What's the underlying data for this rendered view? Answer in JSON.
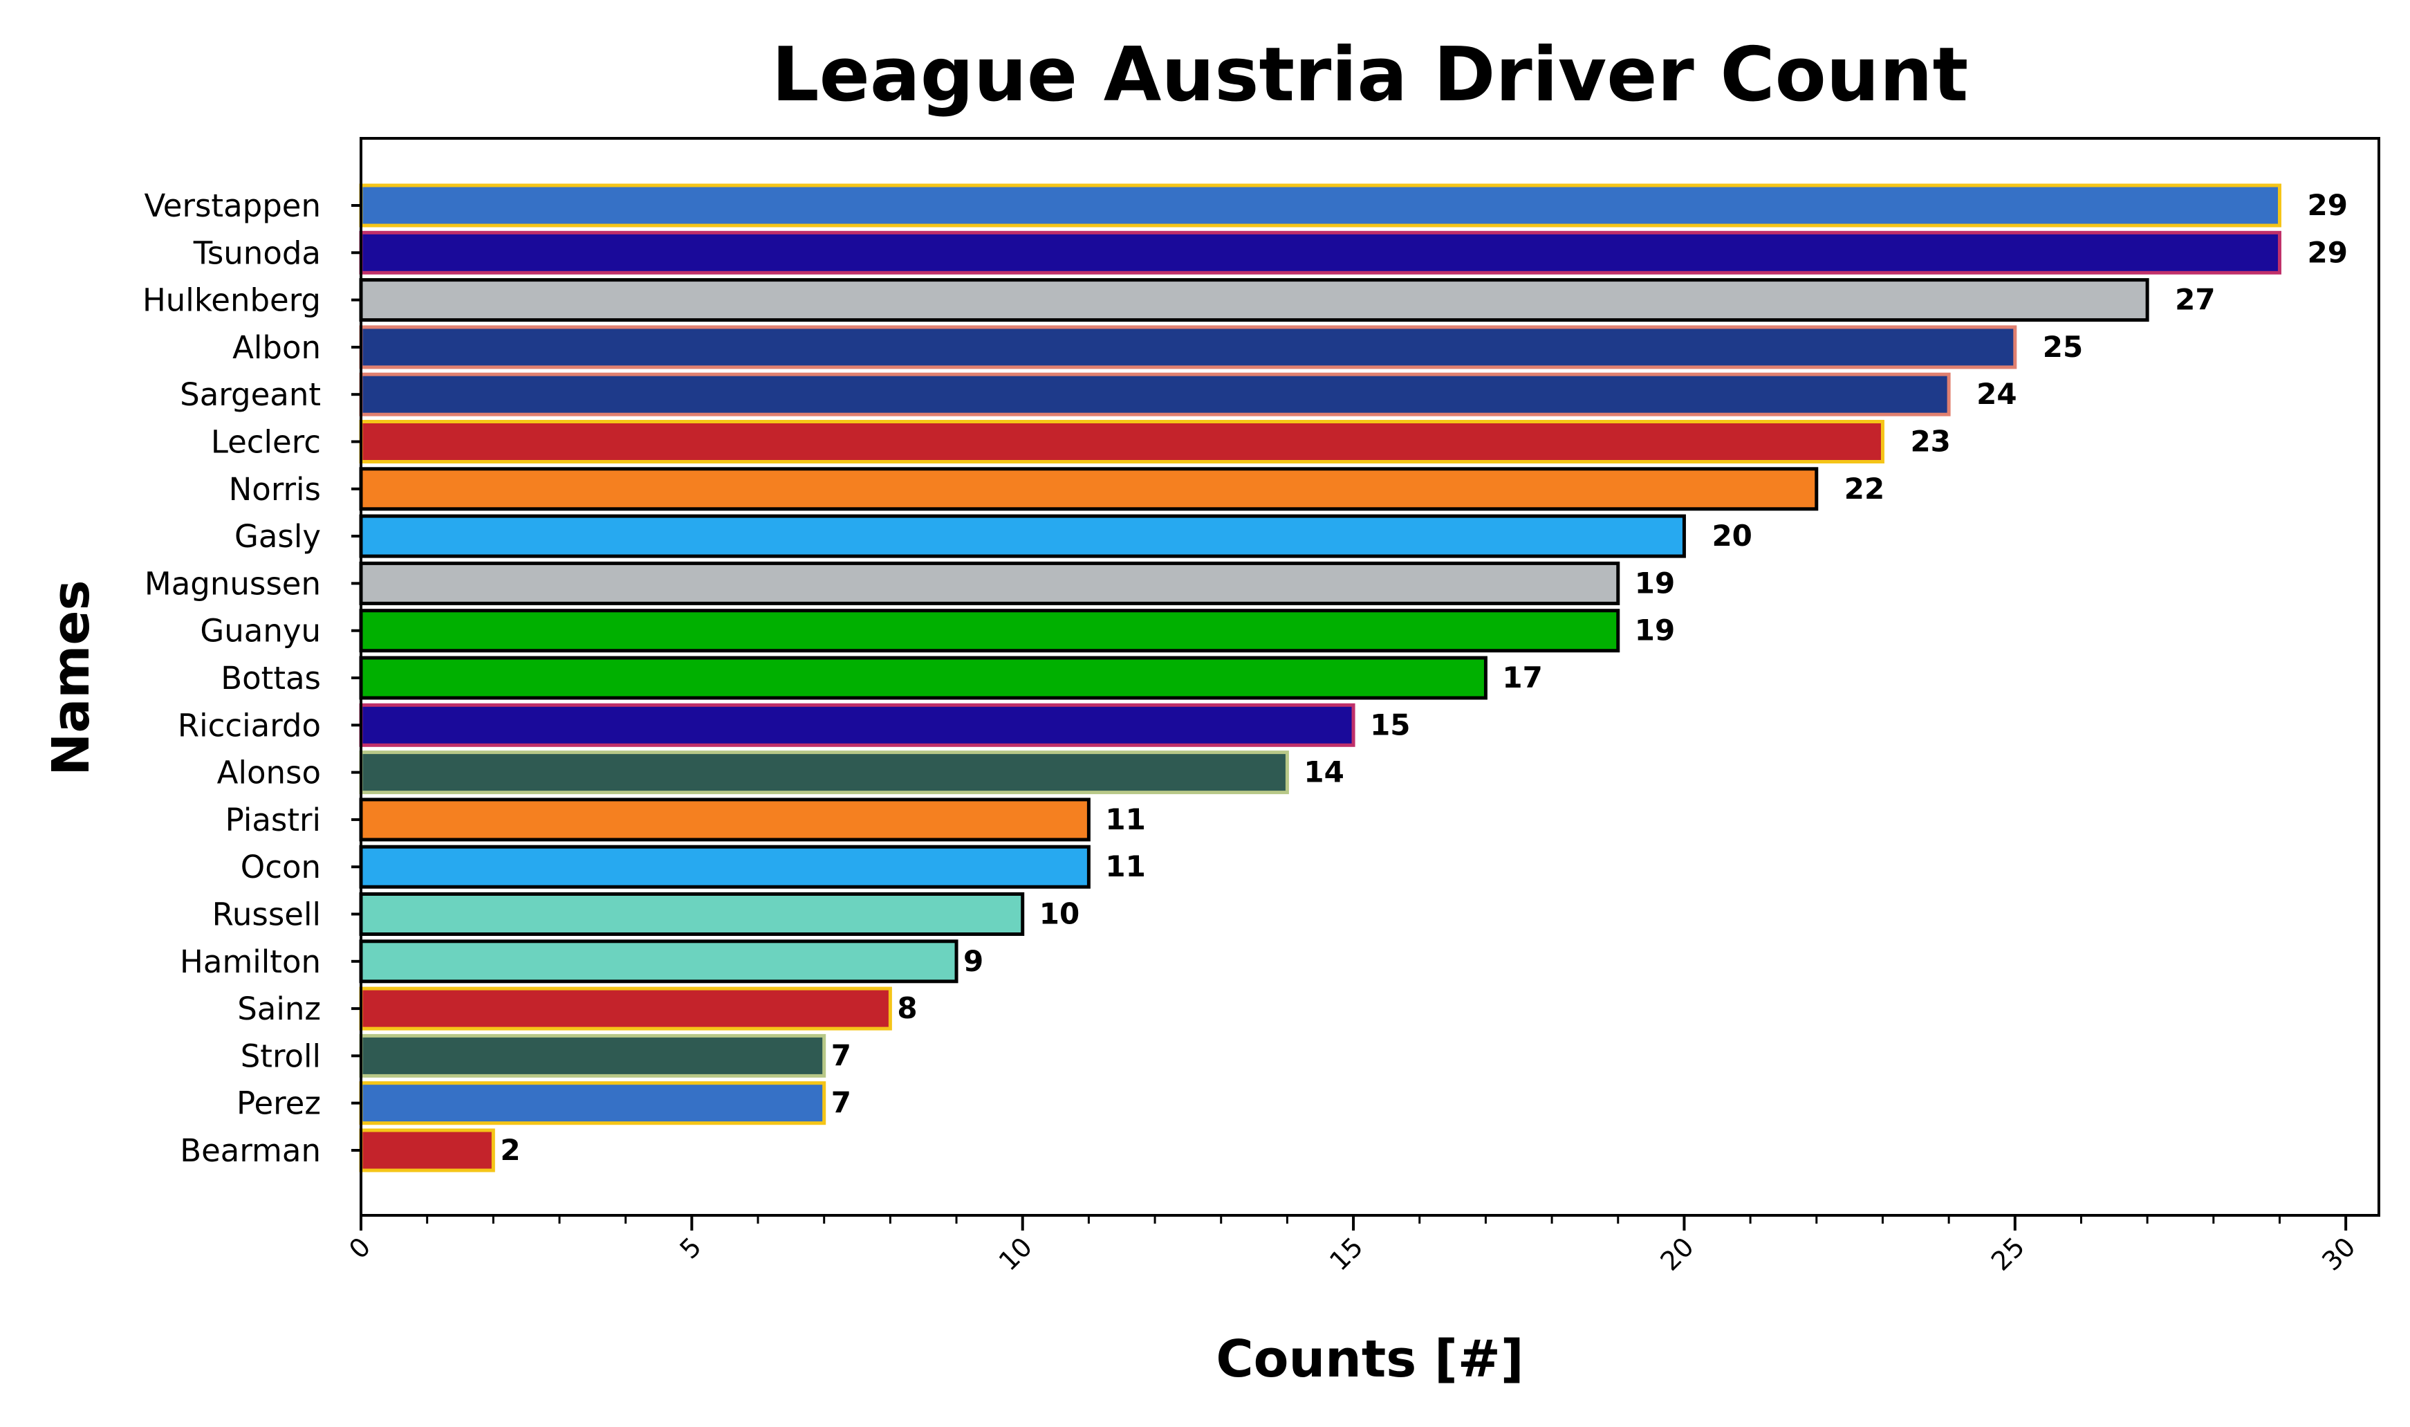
{
  "chart_data": {
    "type": "bar",
    "orientation": "horizontal",
    "title": "League Austria Driver Count",
    "xlabel": "Counts [#]",
    "ylabel": "Names",
    "xlim": [
      0,
      30.5
    ],
    "xticks": [
      "0",
      "5",
      "10",
      "15",
      "20",
      "25",
      "30"
    ],
    "grid": false,
    "legend": "none",
    "categories": [
      "Verstappen",
      "Tsunoda",
      "Hulkenberg",
      "Albon",
      "Sargeant",
      "Leclerc",
      "Norris",
      "Gasly",
      "Magnussen",
      "Guanyu",
      "Bottas",
      "Ricciardo",
      "Alonso",
      "Piastri",
      "Ocon",
      "Russell",
      "Hamilton",
      "Sainz",
      "Stroll",
      "Perez",
      "Bearman"
    ],
    "values": [
      29,
      29,
      27,
      25,
      24,
      23,
      22,
      20,
      19,
      19,
      17,
      15,
      14,
      11,
      11,
      10,
      9,
      8,
      7,
      7,
      2
    ],
    "value_labels": [
      "29",
      "29",
      "27",
      "25",
      "24",
      "23",
      "22",
      "20",
      "19",
      "19",
      "17",
      "15",
      "14",
      "11",
      "11",
      "10",
      "9",
      "8",
      "7",
      "7",
      "2"
    ],
    "bar_colors": [
      "#3671C6",
      "#1A0A9A",
      "#B6BABD",
      "#1E3A8A",
      "#1E3A8A",
      "#C4232B",
      "#F58020",
      "#27A9F0",
      "#B6BABD",
      "#00B000",
      "#00B000",
      "#1A0A9A",
      "#2F5A52",
      "#F58020",
      "#27A9F0",
      "#6CD3BF",
      "#6CD3BF",
      "#C4232B",
      "#2F5A52",
      "#3671C6",
      "#C4232B"
    ],
    "edge_colors": [
      "#F5C518",
      "#C0306A",
      "#000000",
      "#E08070",
      "#E08070",
      "#F5C518",
      "#000000",
      "#000000",
      "#000000",
      "#000000",
      "#000000",
      "#C0306A",
      "#B8C888",
      "#000000",
      "#000000",
      "#000000",
      "#000000",
      "#F5C518",
      "#B8C888",
      "#F5C518",
      "#F5C518"
    ]
  }
}
